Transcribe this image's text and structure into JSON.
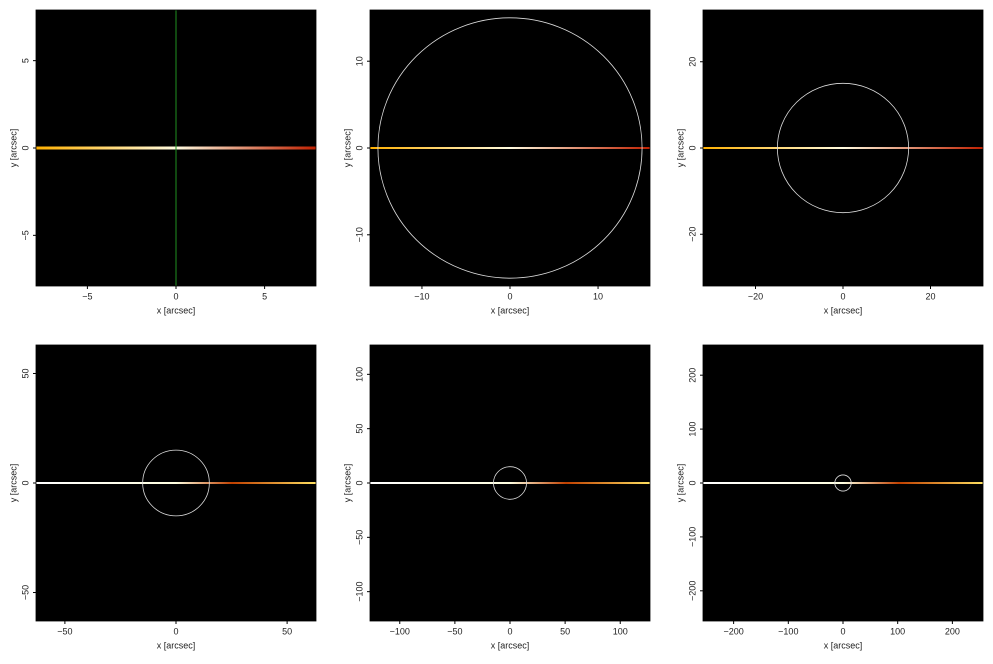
{
  "chart_data": [
    {
      "type": "image",
      "xlabel": "x [arcsec]",
      "ylabel": "y [arcsec]",
      "xlim": [
        -7.9,
        7.9
      ],
      "ylim": [
        -7.9,
        7.9
      ],
      "xticks": [
        {
          "value": -5,
          "label": "−5"
        },
        0,
        5
      ],
      "yticks": [
        {
          "value": -5,
          "label": "−5"
        },
        0,
        5
      ],
      "vline": 0,
      "vline_color": "#1f8f1f"
    },
    {
      "type": "image",
      "xlabel": "x [arcsec]",
      "ylabel": "y [arcsec]",
      "xlim": [
        -15.9,
        15.9
      ],
      "ylim": [
        -15.9,
        15.9
      ],
      "xticks": [
        {
          "value": -10,
          "label": "−10"
        },
        0,
        10
      ],
      "yticks": [
        {
          "value": -10,
          "label": "−10"
        },
        0,
        10
      ],
      "circle_radius": 15
    },
    {
      "type": "image",
      "xlabel": "x [arcsec]",
      "ylabel": "y [arcsec]",
      "xlim": [
        -32,
        32
      ],
      "ylim": [
        -32,
        32
      ],
      "xticks": [
        {
          "value": -20,
          "label": "−20"
        },
        0,
        20
      ],
      "yticks": [
        {
          "value": -20,
          "label": "−20"
        },
        0,
        20
      ],
      "circle_radius": 15
    },
    {
      "type": "image",
      "xlabel": "x [arcsec]",
      "ylabel": "y [arcsec]",
      "xlim": [
        -63,
        63
      ],
      "ylim": [
        -63,
        63
      ],
      "xticks": [
        {
          "value": -50,
          "label": "−50"
        },
        0,
        50
      ],
      "yticks": [
        {
          "value": -50,
          "label": "−50"
        },
        0,
        50
      ],
      "circle_radius": 15
    },
    {
      "type": "image",
      "xlabel": "x [arcsec]",
      "ylabel": "y [arcsec]",
      "xlim": [
        -127,
        127
      ],
      "ylim": [
        -127,
        127
      ],
      "xticks": [
        {
          "value": -100,
          "label": "−100"
        },
        {
          "value": -50,
          "label": "−50"
        },
        0,
        50,
        100
      ],
      "yticks": [
        {
          "value": -100,
          "label": "−100"
        },
        {
          "value": -50,
          "label": "−50"
        },
        0,
        50,
        100
      ],
      "circle_radius": 15
    },
    {
      "type": "image",
      "xlabel": "x [arcsec]",
      "ylabel": "y [arcsec]",
      "xlim": [
        -256,
        256
      ],
      "ylim": [
        -256,
        256
      ],
      "xticks": [
        {
          "value": -200,
          "label": "−200"
        },
        {
          "value": -100,
          "label": "−100"
        },
        0,
        100,
        200
      ],
      "yticks": [
        {
          "value": -200,
          "label": "−200"
        },
        {
          "value": -100,
          "label": "−100"
        },
        0,
        100,
        200
      ],
      "circle_radius": 15
    }
  ]
}
